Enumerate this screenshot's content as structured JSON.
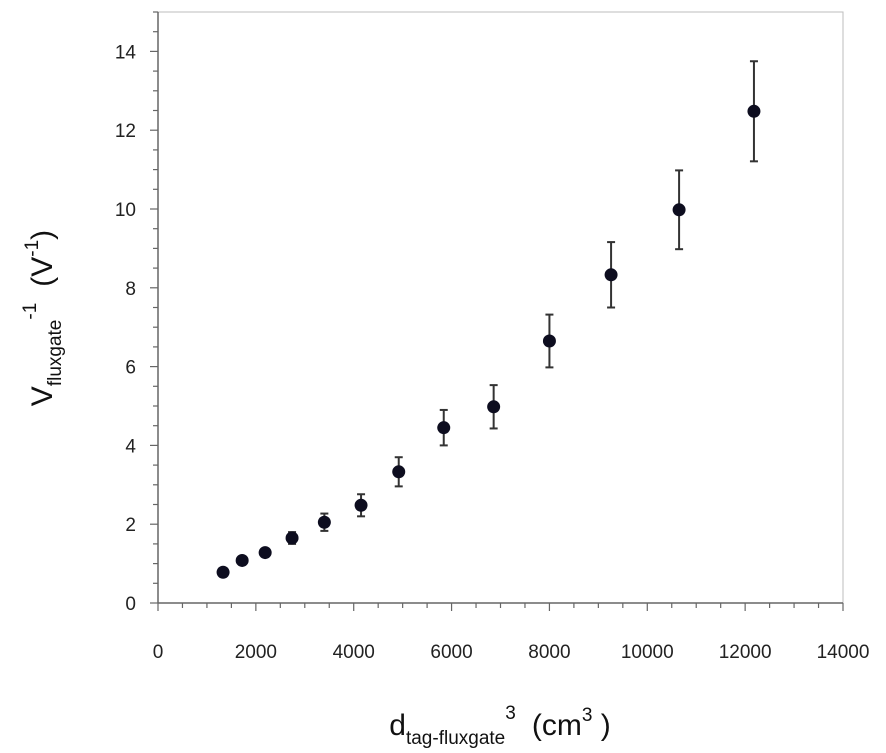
{
  "chart_data": {
    "type": "scatter",
    "xlabel": {
      "base": "d",
      "subscript": "tag-fluxgate",
      "superscript": "3",
      "unit_prefix": "(cm",
      "unit_exp": "3",
      "unit_suffix": " )"
    },
    "ylabel": {
      "base": "V",
      "subscript": "fluxgate",
      "superscript": "-1",
      "unit_prefix": "(V",
      "unit_exp": "-1",
      "unit_suffix": ")"
    },
    "xlim": [
      0,
      14000
    ],
    "ylim": [
      0,
      15
    ],
    "xticks": [
      "0",
      "2000",
      "4000",
      "6000",
      "8000",
      "10000",
      "12000",
      "14000"
    ],
    "yticks": [
      "0",
      "2",
      "4",
      "6",
      "8",
      "10",
      "12",
      "14"
    ],
    "grid": false,
    "marker_color": "#0d0d1f",
    "points": [
      {
        "x": 1330,
        "y": 0.78,
        "err": 0.1
      },
      {
        "x": 1720,
        "y": 1.08,
        "err": 0.1
      },
      {
        "x": 2190,
        "y": 1.28,
        "err": 0.1
      },
      {
        "x": 2740,
        "y": 1.65,
        "err": 0.15
      },
      {
        "x": 3400,
        "y": 2.05,
        "err": 0.22
      },
      {
        "x": 4150,
        "y": 2.48,
        "err": 0.28
      },
      {
        "x": 4920,
        "y": 3.33,
        "err": 0.37
      },
      {
        "x": 5840,
        "y": 4.45,
        "err": 0.45
      },
      {
        "x": 6860,
        "y": 4.98,
        "err": 0.55
      },
      {
        "x": 8000,
        "y": 6.65,
        "err": 0.67
      },
      {
        "x": 9260,
        "y": 8.33,
        "err": 0.83
      },
      {
        "x": 10650,
        "y": 9.98,
        "err": 1.0
      },
      {
        "x": 12180,
        "y": 12.48,
        "err": 1.27
      }
    ]
  }
}
